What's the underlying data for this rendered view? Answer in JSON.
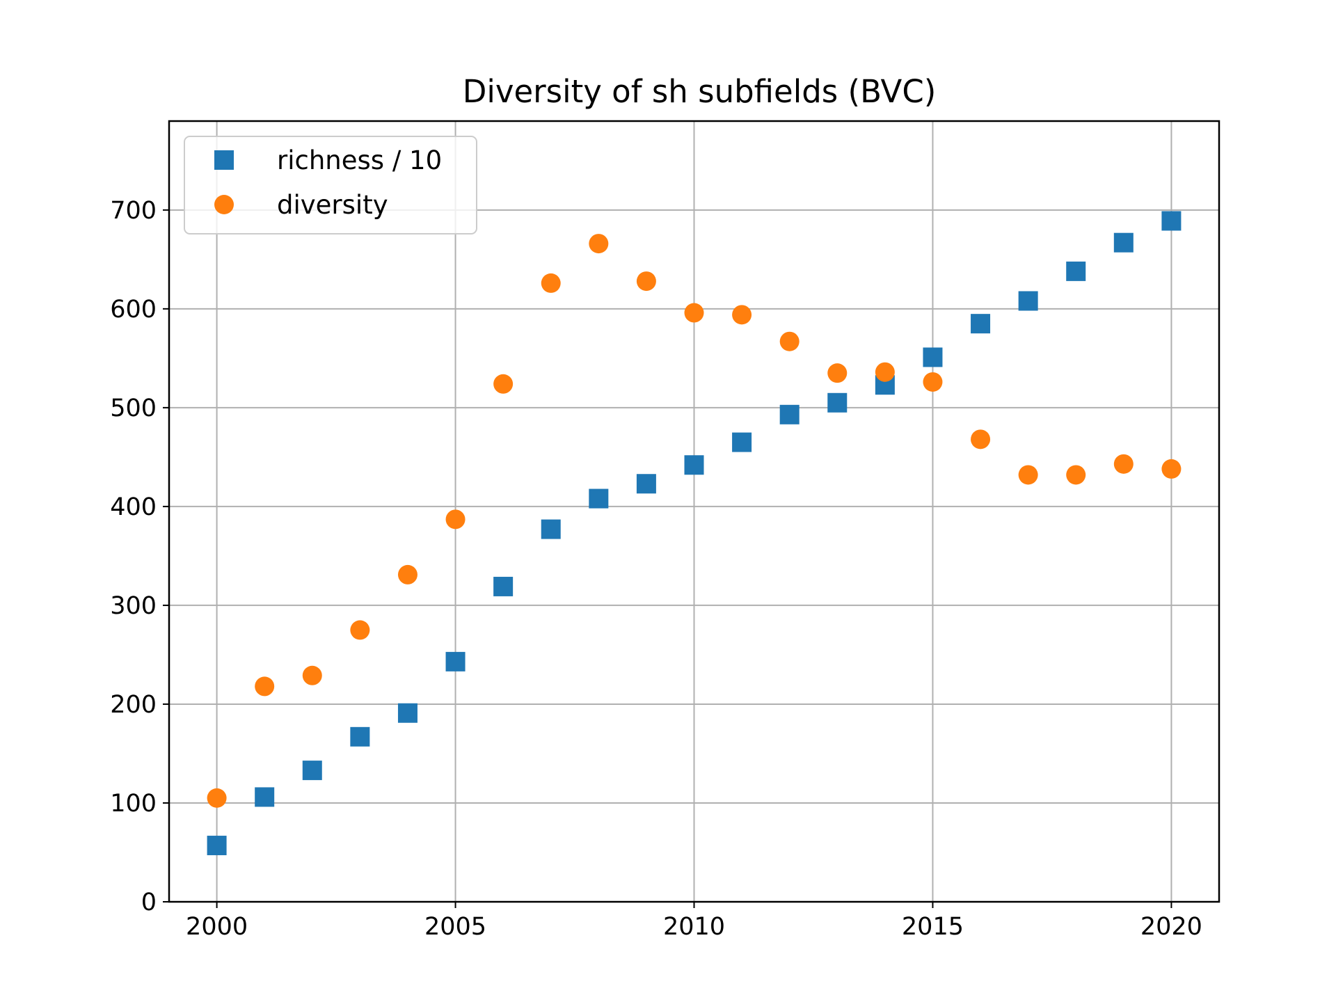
{
  "chart_data": {
    "type": "scatter",
    "title": "Diversity of sh subfields (BVC)",
    "xlabel": "",
    "ylabel": "",
    "xlim": [
      1999,
      2021
    ],
    "ylim": [
      0,
      790
    ],
    "grid": true,
    "legend_position": "top-left",
    "x_ticks": [
      2000,
      2005,
      2010,
      2015,
      2020
    ],
    "y_ticks": [
      0,
      100,
      200,
      300,
      400,
      500,
      600,
      700
    ],
    "x": [
      2000,
      2001,
      2002,
      2003,
      2004,
      2005,
      2006,
      2007,
      2008,
      2009,
      2010,
      2011,
      2012,
      2013,
      2014,
      2015,
      2016,
      2017,
      2018,
      2019,
      2020
    ],
    "series": [
      {
        "name": "richness / 10",
        "marker": "square",
        "color": "#1f77b4",
        "values": [
          57,
          106,
          133,
          167,
          191,
          243,
          319,
          377,
          408,
          423,
          442,
          465,
          493,
          505,
          523,
          551,
          585,
          608,
          638,
          667,
          689
        ]
      },
      {
        "name": "diversity",
        "marker": "circle",
        "color": "#ff7f0e",
        "values": [
          105,
          218,
          229,
          275,
          331,
          387,
          524,
          626,
          666,
          628,
          596,
          594,
          567,
          535,
          536,
          526,
          468,
          432,
          432,
          443,
          438
        ]
      }
    ]
  }
}
